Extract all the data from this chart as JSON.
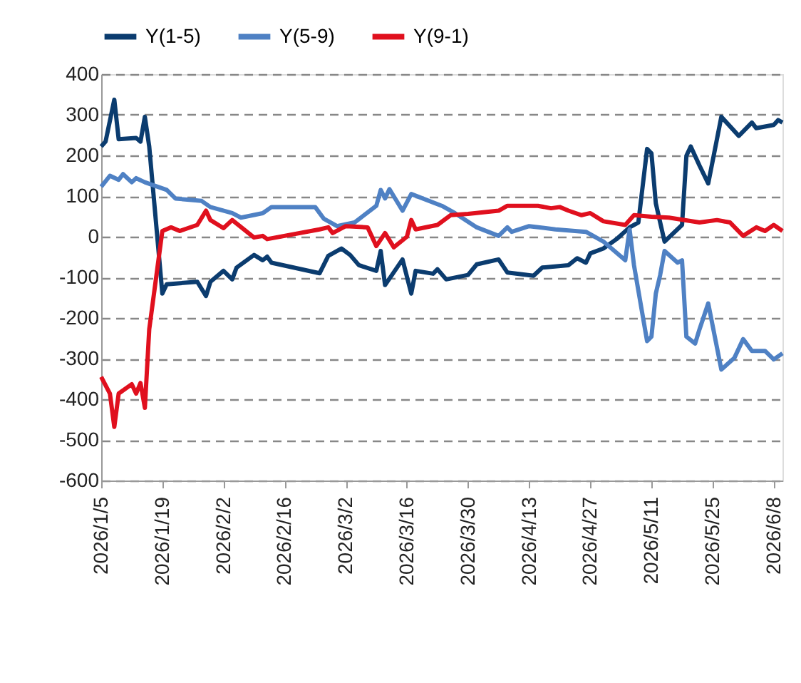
{
  "chart_data": {
    "type": "line",
    "legend": "top",
    "grid": "y",
    "line_style": "solid",
    "marker": "none",
    "xlim": [
      "2026-01-05",
      "2026-06-10"
    ],
    "xticks": [
      {
        "value": "2026-01-05",
        "label": "2026/1/5"
      },
      {
        "value": "2026-01-19",
        "label": "2026/1/19"
      },
      {
        "value": "2026-02-02",
        "label": "2026/2/2"
      },
      {
        "value": "2026-02-16",
        "label": "2026/2/16"
      },
      {
        "value": "2026-03-02",
        "label": "2026/3/2"
      },
      {
        "value": "2026-03-16",
        "label": "2026/3/16"
      },
      {
        "value": "2026-03-30",
        "label": "2026/3/30"
      },
      {
        "value": "2026-04-13",
        "label": "2026/4/13"
      },
      {
        "value": "2026-04-27",
        "label": "2026/4/27"
      },
      {
        "value": "2026-05-11",
        "label": "2026/5/11"
      },
      {
        "value": "2026-05-25",
        "label": "2026/5/25"
      },
      {
        "value": "2026-06-08",
        "label": "2026/6/8"
      }
    ],
    "ylim": [
      -600,
      400
    ],
    "yticks": [
      -600,
      -500,
      -400,
      -300,
      -200,
      -100,
      0,
      100,
      200,
      300,
      400
    ],
    "series": [
      {
        "name": "Y(1-5)",
        "color": "#0b3c6f",
        "x": [
          "2026-01-05",
          "2026-01-06",
          "2026-01-08",
          "2026-01-09",
          "2026-01-13",
          "2026-01-14",
          "2026-01-15",
          "2026-01-16",
          "2026-01-19",
          "2026-01-20",
          "2026-01-27",
          "2026-01-29",
          "2026-01-30",
          "2026-02-02",
          "2026-02-04",
          "2026-02-05",
          "2026-02-09",
          "2026-02-11",
          "2026-02-12",
          "2026-02-13",
          "2026-02-24",
          "2026-02-26",
          "2026-03-01",
          "2026-03-03",
          "2026-03-05",
          "2026-03-09",
          "2026-03-10",
          "2026-03-11",
          "2026-03-15",
          "2026-03-17",
          "2026-03-18",
          "2026-03-22",
          "2026-03-23",
          "2026-03-25",
          "2026-03-30",
          "2026-04-01",
          "2026-04-06",
          "2026-04-08",
          "2026-04-14",
          "2026-04-16",
          "2026-04-22",
          "2026-04-24",
          "2026-04-26",
          "2026-04-27",
          "2026-04-30",
          "2026-05-03",
          "2026-05-06",
          "2026-05-08",
          "2026-05-10",
          "2026-05-11",
          "2026-05-12",
          "2026-05-14",
          "2026-05-18",
          "2026-05-19",
          "2026-05-20",
          "2026-05-22",
          "2026-05-24",
          "2026-05-27",
          "2026-05-31",
          "2026-06-03",
          "2026-06-04",
          "2026-06-08",
          "2026-06-09",
          "2026-06-10"
        ],
        "values": [
          222,
          234,
          337,
          240,
          243,
          234,
          295,
          222,
          -140,
          -117,
          -111,
          -146,
          -111,
          -84,
          -105,
          -76,
          -45,
          -58,
          -49,
          -64,
          -90,
          -47,
          -29,
          -45,
          -70,
          -84,
          -35,
          -119,
          -56,
          -140,
          -84,
          -91,
          -80,
          -105,
          -94,
          -68,
          -56,
          -88,
          -96,
          -76,
          -70,
          -53,
          -64,
          -41,
          -29,
          -6,
          23,
          35,
          216,
          205,
          82,
          -12,
          29,
          199,
          222,
          175,
          131,
          295,
          248,
          281,
          267,
          275,
          287,
          281
        ]
      },
      {
        "name": "Y(5-9)",
        "color": "#4f81c4",
        "x": [
          "2026-01-05",
          "2026-01-07",
          "2026-01-09",
          "2026-01-10",
          "2026-01-12",
          "2026-01-13",
          "2026-01-15",
          "2026-01-20",
          "2026-01-22",
          "2026-01-28",
          "2026-01-30",
          "2026-02-04",
          "2026-02-06",
          "2026-02-11",
          "2026-02-13",
          "2026-02-23",
          "2026-02-25",
          "2026-02-28",
          "2026-03-04",
          "2026-03-09",
          "2026-03-10",
          "2026-03-11",
          "2026-03-12",
          "2026-03-15",
          "2026-03-17",
          "2026-03-24",
          "2026-03-27",
          "2026-04-01",
          "2026-04-06",
          "2026-04-08",
          "2026-04-09",
          "2026-04-13",
          "2026-04-19",
          "2026-04-26",
          "2026-04-30",
          "2026-05-05",
          "2026-05-06",
          "2026-05-07",
          "2026-05-10",
          "2026-05-11",
          "2026-05-12",
          "2026-05-13",
          "2026-05-14",
          "2026-05-17",
          "2026-05-18",
          "2026-05-19",
          "2026-05-21",
          "2026-05-22",
          "2026-05-24",
          "2026-05-27",
          "2026-05-30",
          "2026-06-01",
          "2026-06-03",
          "2026-06-06",
          "2026-06-08",
          "2026-06-10"
        ],
        "values": [
          123,
          150,
          140,
          154,
          134,
          144,
          134,
          115,
          94,
          88,
          73,
          58,
          47,
          58,
          73,
          73,
          44,
          26,
          35,
          76,
          115,
          94,
          117,
          64,
          105,
          76,
          58,
          23,
          2,
          23,
          12,
          26,
          18,
          12,
          -12,
          -58,
          18,
          -70,
          -257,
          -246,
          -140,
          -94,
          -35,
          -64,
          -58,
          -246,
          -263,
          -228,
          -164,
          -327,
          -298,
          -252,
          -281,
          -281,
          -302,
          -287
        ]
      },
      {
        "name": "Y(9-1)",
        "color": "#e0101e",
        "x": [
          "2026-01-05",
          "2026-01-07",
          "2026-01-08",
          "2026-01-09",
          "2026-01-12",
          "2026-01-13",
          "2026-01-14",
          "2026-01-15",
          "2026-01-16",
          "2026-01-19",
          "2026-01-21",
          "2026-01-23",
          "2026-01-27",
          "2026-01-29",
          "2026-01-30",
          "2026-02-02",
          "2026-02-04",
          "2026-02-09",
          "2026-02-11",
          "2026-02-12",
          "2026-02-24",
          "2026-02-26",
          "2026-02-27",
          "2026-03-02",
          "2026-03-07",
          "2026-03-09",
          "2026-03-11",
          "2026-03-13",
          "2026-03-16",
          "2026-03-17",
          "2026-03-18",
          "2026-03-23",
          "2026-03-26",
          "2026-03-30",
          "2026-04-06",
          "2026-04-08",
          "2026-04-15",
          "2026-04-18",
          "2026-04-20",
          "2026-04-22",
          "2026-04-25",
          "2026-04-27",
          "2026-04-30",
          "2026-05-05",
          "2026-05-07",
          "2026-05-11",
          "2026-05-15",
          "2026-05-22",
          "2026-05-26",
          "2026-05-29",
          "2026-06-01",
          "2026-06-04",
          "2026-06-06",
          "2026-06-08",
          "2026-06-10"
        ],
        "values": [
          -345,
          -386,
          -468,
          -386,
          -363,
          -386,
          -360,
          -421,
          -228,
          14,
          23,
          14,
          29,
          64,
          41,
          21,
          41,
          -2,
          2,
          -6,
          18,
          23,
          9,
          26,
          23,
          -23,
          9,
          -26,
          0,
          41,
          18,
          29,
          53,
          56,
          64,
          76,
          76,
          70,
          73,
          64,
          53,
          58,
          38,
          29,
          53,
          49,
          47,
          35,
          41,
          35,
          2,
          23,
          14,
          29,
          14
        ]
      }
    ]
  }
}
